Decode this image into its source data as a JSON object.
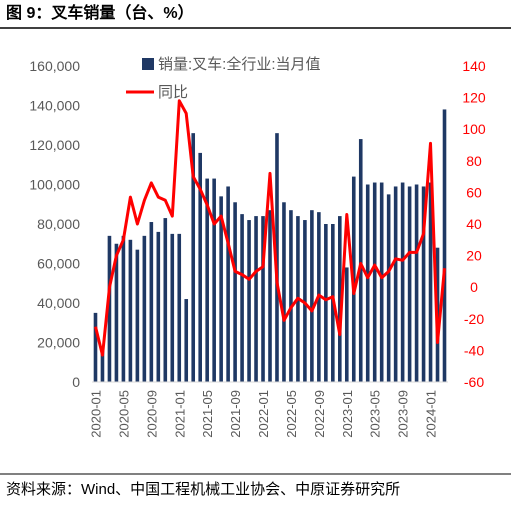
{
  "title": "图 9：叉车销量（台、%）",
  "source": "资料来源：Wind、中国工程机械工业协会、中原证券研究所",
  "chart_data": {
    "type": "bar_line",
    "legend": "top",
    "categories": [
      "2020-01",
      null,
      null,
      null,
      "2020-05",
      null,
      null,
      null,
      "2020-09",
      null,
      null,
      null,
      "2021-01",
      null,
      null,
      null,
      "2021-05",
      null,
      null,
      null,
      "2021-09",
      null,
      null,
      null,
      "2022-01",
      null,
      null,
      null,
      "2022-05",
      null,
      null,
      null,
      "2022-09",
      null,
      null,
      null,
      "2023-01",
      null,
      null,
      null,
      "2023-05",
      null,
      null,
      null,
      "2023-09",
      null,
      null,
      null,
      "2024-01",
      null,
      null
    ],
    "series": [
      {
        "name": "销量:叉车:全行业:当月值",
        "type": "bar",
        "color": "#1f3864",
        "values": [
          35000,
          18000,
          74000,
          70000,
          74000,
          72000,
          67000,
          74000,
          81000,
          76000,
          83000,
          75000,
          75000,
          42000,
          126000,
          116000,
          103000,
          103000,
          94000,
          99000,
          91000,
          85000,
          82000,
          84000,
          84000,
          87000,
          126000,
          91000,
          87000,
          84000,
          82000,
          87000,
          86000,
          80000,
          80000,
          84000,
          58000,
          104000,
          123000,
          100000,
          101000,
          101000,
          95000,
          99000,
          101000,
          99000,
          100000,
          99000,
          101000,
          68000,
          138000
        ]
      },
      {
        "name": "同比",
        "type": "line",
        "axis": "y2",
        "color": "#ff0000",
        "values": [
          -25,
          -43,
          0,
          20,
          30,
          57,
          40,
          55,
          66,
          57,
          55,
          45,
          118,
          110,
          70,
          62,
          52,
          40,
          45,
          28,
          10,
          8,
          5,
          10,
          13,
          72,
          3,
          -21,
          -13,
          -7,
          -10,
          -15,
          -5,
          -8,
          -6,
          -30,
          46,
          -4,
          15,
          6,
          14,
          6,
          10,
          18,
          17,
          22,
          22,
          34,
          91,
          -35,
          12
        ]
      }
    ],
    "ylim": [
      0,
      160000
    ],
    "yticks": [
      0,
      {
        "value": 20000,
        "label": "20,000"
      },
      {
        "value": 40000,
        "label": "40,000"
      },
      {
        "value": 60000,
        "label": "60,000"
      },
      {
        "value": 80000,
        "label": "80,000"
      },
      {
        "value": 100000,
        "label": "100,000"
      },
      {
        "value": 120000,
        "label": "120,000"
      },
      {
        "value": 140000,
        "label": "140,000"
      },
      {
        "value": 160000,
        "label": "160,000"
      }
    ],
    "y2lim": [
      -60,
      140
    ],
    "y2ticks": [
      -60,
      -40,
      -20,
      0,
      20,
      40,
      60,
      80,
      100,
      120,
      140
    ],
    "y2tick_color": "#ff0000"
  }
}
